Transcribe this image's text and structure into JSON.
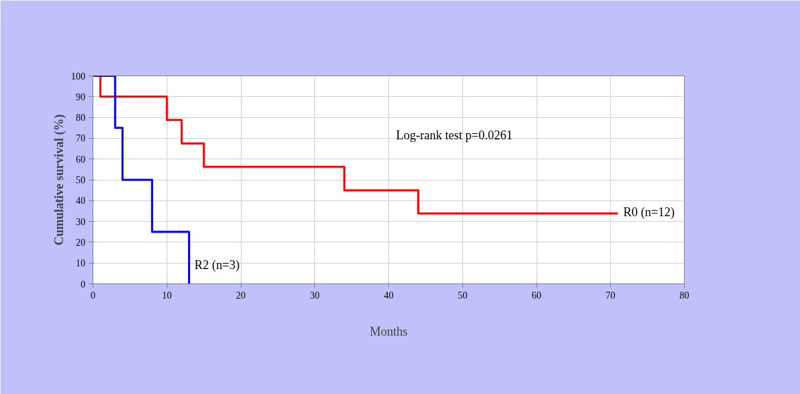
{
  "chart_data": {
    "type": "step",
    "xlabel": "Months",
    "ylabel": "Cumulative survival (%)",
    "xlim": [
      0,
      80
    ],
    "xticks": [
      0,
      10,
      20,
      30,
      40,
      50,
      60,
      70,
      80
    ],
    "ylim": [
      0,
      100
    ],
    "yticks": [
      0,
      10,
      20,
      30,
      40,
      50,
      60,
      70,
      80,
      90,
      100
    ],
    "grid": true,
    "marker": "none",
    "line_style": "solid",
    "series": [
      {
        "name": "R0 (n=12)",
        "color": "#ff0000",
        "x": [
          0,
          1,
          10,
          12,
          15,
          34,
          44,
          71
        ],
        "values": [
          100,
          90,
          78.8,
          67.5,
          56.3,
          45,
          33.8,
          33.8
        ]
      },
      {
        "name": "R2 (n=3)",
        "color": "#0000ff",
        "x": [
          0,
          3,
          4,
          8,
          13
        ],
        "values": [
          100,
          75,
          50,
          25,
          0
        ]
      }
    ],
    "annotations": [
      "Log-rank test p=0.0261"
    ]
  }
}
